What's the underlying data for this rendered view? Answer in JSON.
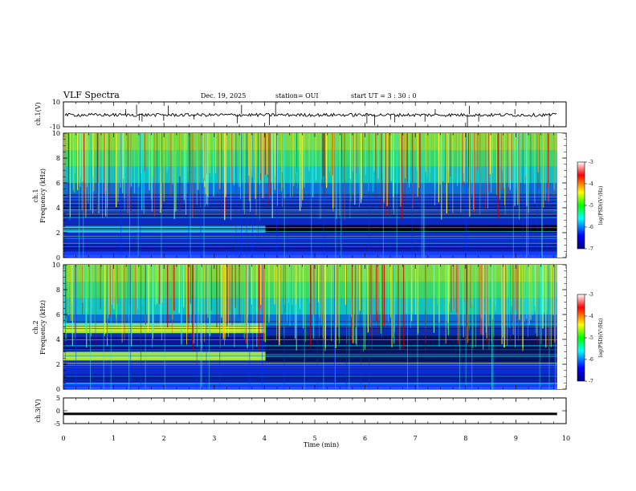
{
  "header": {
    "title": "VLF Spectra",
    "date": "Dec. 19, 2025",
    "station": "station= OUI",
    "start": "start  UT  =   3  : 30 : 0"
  },
  "chart_data": {
    "type": "heatmap",
    "x": {
      "label": "Time  (min)",
      "range": [
        0,
        10
      ],
      "ticks": [
        "0",
        "1",
        "2",
        "3",
        "4",
        "5",
        "6",
        "7",
        "8",
        "9",
        "10"
      ]
    },
    "panels": [
      {
        "id": "ch1_waveform",
        "type": "line",
        "ylabel": "ch.1(V)",
        "ylim": [
          -10,
          10
        ],
        "ticks": [
          "10",
          "-10"
        ]
      },
      {
        "id": "ch1_spectrogram",
        "type": "heatmap",
        "ylabel": "ch.1\nFrequency  (kHz)",
        "ylim": [
          0,
          10
        ],
        "ticks": [
          "0",
          "2",
          "4",
          "6",
          "8",
          "10"
        ],
        "colorbar": {
          "label": "log(PSD)(V²/Hz)",
          "range": [
            -7,
            -3
          ],
          "ticks": [
            "-3",
            "-4",
            "-5",
            "-6",
            "-7"
          ]
        }
      },
      {
        "id": "ch2_spectrogram",
        "type": "heatmap",
        "ylabel": "ch.2\nFrequency  (kHz)",
        "ylim": [
          0,
          10
        ],
        "ticks": [
          "0",
          "2",
          "4",
          "6",
          "8",
          "10"
        ],
        "colorbar": {
          "label": "log(PSD)(V²/Hz)",
          "range": [
            -7,
            -3
          ],
          "ticks": [
            "-3",
            "-4",
            "-5",
            "-6",
            "-7"
          ]
        }
      },
      {
        "id": "ch3_waveform",
        "type": "line",
        "ylabel": "ch.3(V)",
        "ylim": [
          -5,
          5
        ],
        "ticks": [
          "5",
          "0",
          "-5"
        ]
      }
    ],
    "data_end_min": 9.82,
    "notable_features": {
      "ch1_band_khz": [
        2.0,
        2.6
      ],
      "ch2_bands_khz": [
        [
          2.3,
          3.0
        ],
        [
          4.5,
          5.3
        ]
      ],
      "ch2_band_end_min": 4.02,
      "ch3_level_v": -1.2
    }
  }
}
